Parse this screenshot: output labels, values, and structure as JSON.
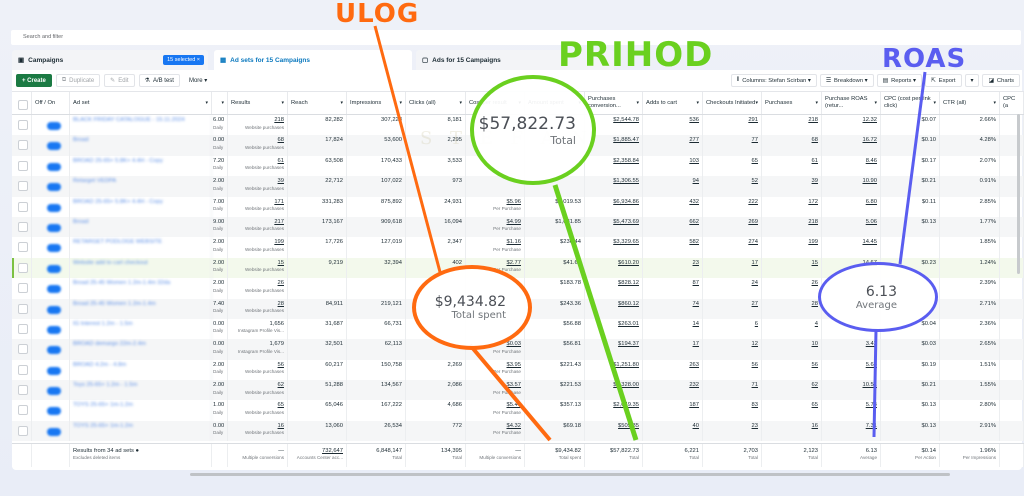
{
  "search": {
    "placeholder": "Search and filter"
  },
  "tabs": [
    {
      "label": "Campaigns",
      "badge": "15 selected ×"
    },
    {
      "label": "Ad sets for 15 Campaigns"
    },
    {
      "label": "Ads for 15 Campaigns"
    }
  ],
  "toolbar": {
    "create": "+ Create",
    "duplicate": "Duplicate",
    "edit": "Edit",
    "ab_test": "A/B test",
    "more": "More ▾",
    "columns": "Columns: Stefan Scirban ▾",
    "breakdown": "Breakdown ▾",
    "reports": "Reports ▾",
    "export": "Export",
    "charts": "Charts"
  },
  "columns": [
    "",
    "Off / On",
    "Ad set",
    "",
    "Results",
    "Reach",
    "Impressions",
    "Clicks (all)",
    "Cost per result",
    "Amount spent",
    "Purchases conversion...",
    "Adds to cart",
    "Checkouts Initiated",
    "Purchases",
    "Purchase ROAS (retur...",
    "CPC (cost per link click)",
    "CTR (all)",
    "CPC (a"
  ],
  "rows": [
    {
      "name": "BLACK FRIDAY CATALOGUE - 15.11.2024",
      "budget": "6.00",
      "results": "218",
      "rtype": "Website purchases",
      "reach": "82,282",
      "impr": "307,228",
      "clicks": "8,181",
      "cpr": "",
      "spent": "",
      "pcv": "$2,544.78",
      "atc": "536",
      "co": "291",
      "pur": "218",
      "roas": "12.32",
      "cpc": "$0.07",
      "ctr": "2.66%"
    },
    {
      "name": "Broad",
      "budget": "0.00",
      "results": "68",
      "rtype": "Website purchases",
      "reach": "17,824",
      "impr": "53,600",
      "clicks": "2,295",
      "cpr": "",
      "spent": "",
      "pcv": "$1,885.47",
      "atc": "277",
      "co": "77",
      "pur": "68",
      "roas": "16.72",
      "cpc": "$0.10",
      "ctr": "4.28%"
    },
    {
      "name": "BROAD 25-65+ 5.8K+ 4.4H - Copy",
      "budget": "7.20",
      "results": "61",
      "rtype": "Website purchases",
      "reach": "63,508",
      "impr": "170,433",
      "clicks": "3,533",
      "cpr": "",
      "spent": "",
      "pcv": "$2,358.84",
      "atc": "103",
      "co": "65",
      "pur": "61",
      "roas": "8.46",
      "cpc": "$0.17",
      "ctr": "2.07%"
    },
    {
      "name": "Retarget VEDPA",
      "budget": "2.00",
      "results": "39",
      "rtype": "Website purchases",
      "reach": "22,712",
      "impr": "107,022",
      "clicks": "973",
      "cpr": "",
      "spent": "",
      "pcv": "$1,306.55",
      "atc": "94",
      "co": "52",
      "pur": "39",
      "roas": "10.90",
      "cpc": "$0.21",
      "ctr": "0.91%"
    },
    {
      "name": "BROAD 25-65+ 5.8K+ 4.4H - Copy",
      "budget": "7.00",
      "results": "171",
      "rtype": "Website purchases",
      "reach": "331,283",
      "impr": "875,892",
      "clicks": "24,931",
      "cpr": "$5.96",
      "spent": "$1,019.53",
      "pcv": "$6,934.86",
      "atc": "432",
      "co": "222",
      "pur": "172",
      "roas": "6.80",
      "cpc": "$0.11",
      "ctr": "2.85%"
    },
    {
      "name": "Broad",
      "budget": "9.00",
      "results": "217",
      "rtype": "Website purchases",
      "reach": "173,167",
      "impr": "909,618",
      "clicks": "16,094",
      "cpr": "$4.99",
      "spent": "$1,081.85",
      "pcv": "$5,473.69",
      "atc": "662",
      "co": "269",
      "pur": "218",
      "roas": "5.06",
      "cpc": "$0.13",
      "ctr": "1.77%"
    },
    {
      "name": "RETARGET PODLOGE WEBSITE",
      "budget": "2.00",
      "results": "199",
      "rtype": "Website purchases",
      "reach": "17,726",
      "impr": "127,019",
      "clicks": "2,347",
      "cpr": "$1.16",
      "spent": "$230.44",
      "pcv": "$3,329.65",
      "atc": "582",
      "co": "274",
      "pur": "199",
      "roas": "14.45",
      "cpc": "",
      "ctr": "1.85%"
    },
    {
      "name": "Website add to cart checkout",
      "budget": "2.00",
      "results": "15",
      "rtype": "Website purchases",
      "reach": "9,219",
      "impr": "32,394",
      "clicks": "402",
      "cpr": "$2.77",
      "spent": "$41.60",
      "pcv": "$610.20",
      "atc": "23",
      "co": "17",
      "pur": "15",
      "roas": "14.67",
      "cpc": "$0.23",
      "ctr": "1.24%"
    },
    {
      "name": "Broad 25-45 Women 1.2m-1.4m 32da",
      "budget": "2.00",
      "results": "26",
      "rtype": "Website purchases",
      "reach": "",
      "impr": "",
      "clicks": "",
      "cpr": "",
      "spent": "$183.78",
      "pcv": "$828.12",
      "atc": "87",
      "co": "24",
      "pur": "26",
      "roas": "",
      "cpc": "",
      "ctr": "2.39%"
    },
    {
      "name": "Broad 25-45 Women 1.2m-1.4m",
      "budget": "7.40",
      "results": "28",
      "rtype": "Website purchases",
      "reach": "84,911",
      "impr": "219,121",
      "clicks": "",
      "cpr": "",
      "spent": "$243.36",
      "pcv": "$860.12",
      "atc": "74",
      "co": "27",
      "pur": "28",
      "roas": "",
      "cpc": "",
      "ctr": "2.71%"
    },
    {
      "name": "IG Interest 1.2m - 1.5m",
      "budget": "0.00",
      "results": "1,656",
      "rtype": "Instagram Profile Vis...",
      "reach": "31,687",
      "impr": "66,731",
      "clicks": "",
      "cpr": "",
      "spent": "$56.88",
      "pcv": "$263.01",
      "atc": "14",
      "co": "6",
      "pur": "4",
      "roas": "",
      "cpc": "$0.04",
      "ctr": "2.36%"
    },
    {
      "name": "BROAD demargo 22m-2.4m",
      "budget": "0.00",
      "results": "1,679",
      "rtype": "Instagram Profile Vis...",
      "reach": "32,501",
      "impr": "62,113",
      "clicks": "",
      "cpr": "$0.03",
      "spent": "$56.81",
      "pcv": "$194.37",
      "atc": "17",
      "co": "12",
      "pur": "10",
      "roas": "3.42",
      "cpc": "$0.03",
      "ctr": "2.65%"
    },
    {
      "name": "BROAD 4.2m - 4.8m",
      "budget": "2.00",
      "results": "56",
      "rtype": "Website purchases",
      "reach": "60,217",
      "impr": "150,758",
      "clicks": "2,269",
      "cpr": "$3.95",
      "spent": "$221.43",
      "pcv": "$1,251.80",
      "atc": "263",
      "co": "56",
      "pur": "56",
      "roas": "5.65",
      "cpc": "$0.19",
      "ctr": "1.51%"
    },
    {
      "name": "Toys 25-65+ 1.2m - 1.5m",
      "budget": "2.00",
      "results": "62",
      "rtype": "Website purchases",
      "reach": "51,288",
      "impr": "134,567",
      "clicks": "2,086",
      "cpr": "$3.57",
      "spent": "$221.53",
      "pcv": "$2,328.00",
      "atc": "232",
      "co": "71",
      "pur": "62",
      "roas": "10.51",
      "cpc": "$0.21",
      "ctr": "1.55%"
    },
    {
      "name": "TOYS 25-65+ 1m-1.2m",
      "budget": "1.00",
      "results": "65",
      "rtype": "Website purchases",
      "reach": "65,046",
      "impr": "167,222",
      "clicks": "4,686",
      "cpr": "$5.49",
      "spent": "$357.13",
      "pcv": "$2,049.35",
      "atc": "187",
      "co": "83",
      "pur": "65",
      "roas": "5.74",
      "cpc": "$0.13",
      "ctr": "2.80%"
    },
    {
      "name": "TOYS 25-65+ 1m-1.2m",
      "budget": "0.00",
      "results": "16",
      "rtype": "Website purchases",
      "reach": "13,060",
      "impr": "26,534",
      "clicks": "772",
      "cpr": "$4.32",
      "spent": "$69.18",
      "pcv": "$505.35",
      "atc": "40",
      "co": "23",
      "pur": "16",
      "roas": "7.31",
      "cpc": "$0.13",
      "ctr": "2.91%"
    }
  ],
  "budget_sub": "Daily",
  "cpr_sub": "Per Purchase",
  "totals": {
    "label": "Results from 34 ad sets",
    "sublabel": "Excludes deleted items",
    "results": "—",
    "results_sub": "Multiple conversions",
    "reach": "732,647",
    "reach_sub": "Accounts Center acc...",
    "impr": "6,848,147",
    "impr_sub": "Total",
    "clicks": "134,395",
    "clicks_sub": "Total",
    "cpr": "—",
    "cpr_sub": "Multiple conversions",
    "spent": "$9,434.82",
    "spent_sub": "Total spent",
    "pcv": "$57,822.73",
    "pcv_sub": "Total",
    "atc": "6,221",
    "atc_sub": "Total",
    "co": "2,703",
    "co_sub": "Total",
    "pur": "2,123",
    "pur_sub": "Total",
    "roas": "6.13",
    "roas_sub": "Average",
    "cpc": "$0.14",
    "cpc_sub": "Per Action",
    "ctr": "1.96%",
    "ctr_sub": "Per Impressions"
  },
  "annotations": {
    "prihod": "PRIHOD",
    "prihod_value": "$57,822.73",
    "prihod_sub": "Total",
    "ulog": "ULOG",
    "ulog_value": "$9,434.82",
    "ulog_sub": "Total spent",
    "roas": "ROAS",
    "roas_value": "6.13",
    "roas_sub": "Average",
    "watermark": "STEFAN SCIRBAN"
  },
  "colors": {
    "green": "#6ad01f",
    "orange": "#ff6a10",
    "blue": "#5a5df0",
    "accent": "#1877f2",
    "create": "#1b7a43"
  }
}
